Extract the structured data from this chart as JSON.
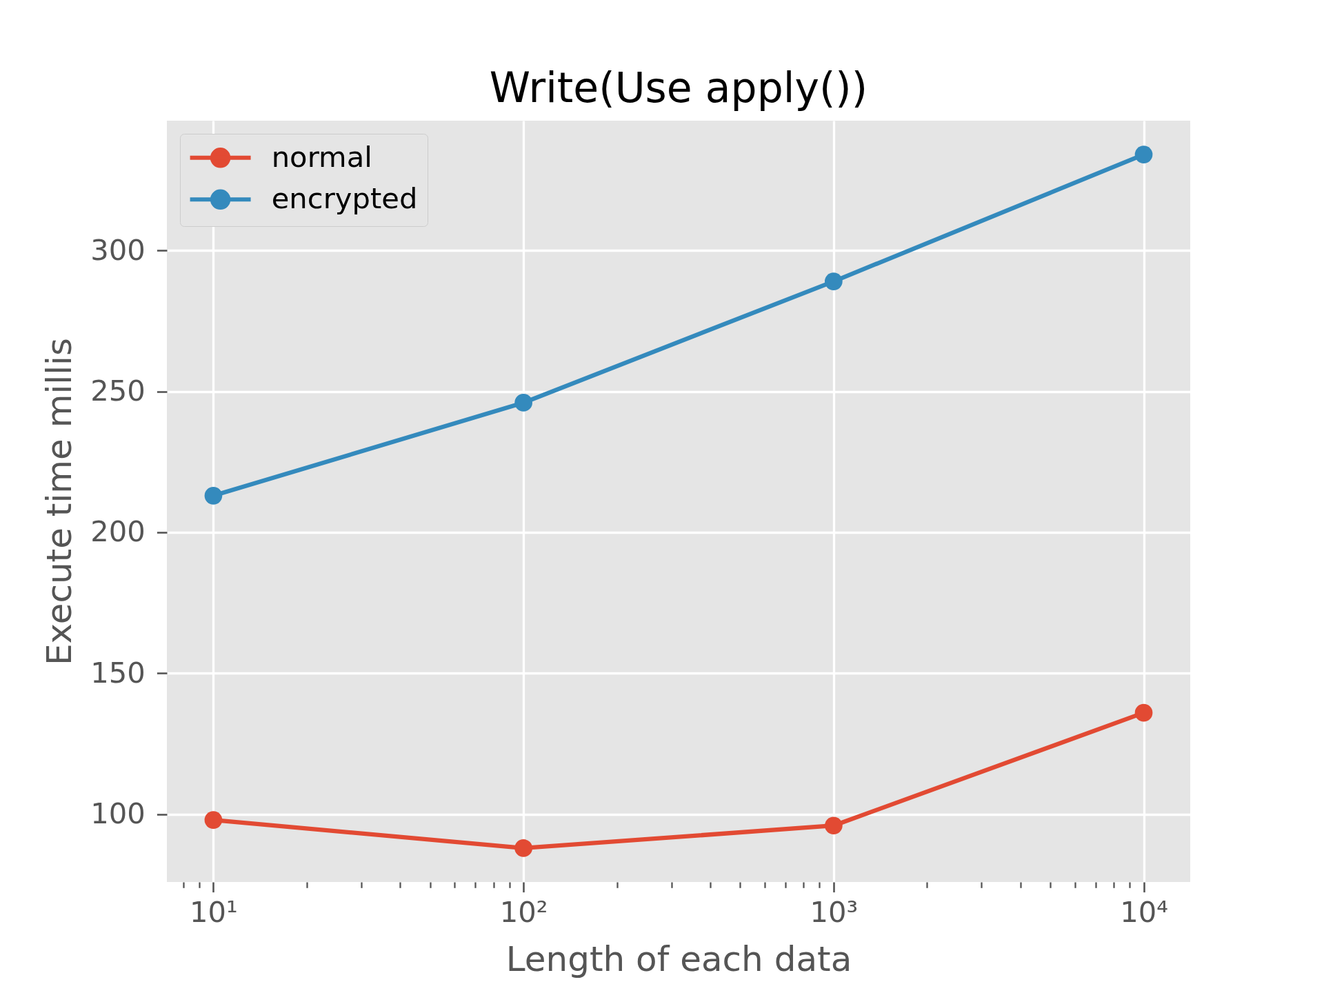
{
  "chart_data": {
    "type": "line",
    "title": "Write(Use apply())",
    "xlabel": "Length of each data",
    "ylabel": "Execute time millis",
    "x": [
      10,
      100,
      1000,
      10000
    ],
    "series": [
      {
        "name": "normal",
        "color": "#e24a33",
        "values": [
          98,
          88,
          96,
          136
        ]
      },
      {
        "name": "encrypted",
        "color": "#348abd",
        "values": [
          213,
          246,
          289,
          334
        ]
      }
    ],
    "log": "x",
    "xlim": [
      7.08,
      14125
    ],
    "xticks": [
      {
        "value": 8,
        "label": null
      },
      {
        "value": 9,
        "label": null
      },
      {
        "value": 10,
        "label": "10¹"
      },
      {
        "value": 20,
        "label": null
      },
      {
        "value": 30,
        "label": null
      },
      {
        "value": 40,
        "label": null
      },
      {
        "value": 50,
        "label": null
      },
      {
        "value": 60,
        "label": null
      },
      {
        "value": 70,
        "label": null
      },
      {
        "value": 80,
        "label": null
      },
      {
        "value": 90,
        "label": null
      },
      {
        "value": 100,
        "label": "10²"
      },
      {
        "value": 200,
        "label": null
      },
      {
        "value": 300,
        "label": null
      },
      {
        "value": 400,
        "label": null
      },
      {
        "value": 500,
        "label": null
      },
      {
        "value": 600,
        "label": null
      },
      {
        "value": 700,
        "label": null
      },
      {
        "value": 800,
        "label": null
      },
      {
        "value": 900,
        "label": null
      },
      {
        "value": 1000,
        "label": "10³"
      },
      {
        "value": 2000,
        "label": null
      },
      {
        "value": 3000,
        "label": null
      },
      {
        "value": 4000,
        "label": null
      },
      {
        "value": 5000,
        "label": null
      },
      {
        "value": 6000,
        "label": null
      },
      {
        "value": 7000,
        "label": null
      },
      {
        "value": 8000,
        "label": null
      },
      {
        "value": 9000,
        "label": null
      },
      {
        "value": 10000,
        "label": "10⁴"
      }
    ],
    "ylim": [
      76,
      346
    ],
    "yticks": [
      100,
      150,
      200,
      250,
      300
    ],
    "grid": true,
    "legend": "top left",
    "marker": "circle",
    "line_style": "solid"
  }
}
